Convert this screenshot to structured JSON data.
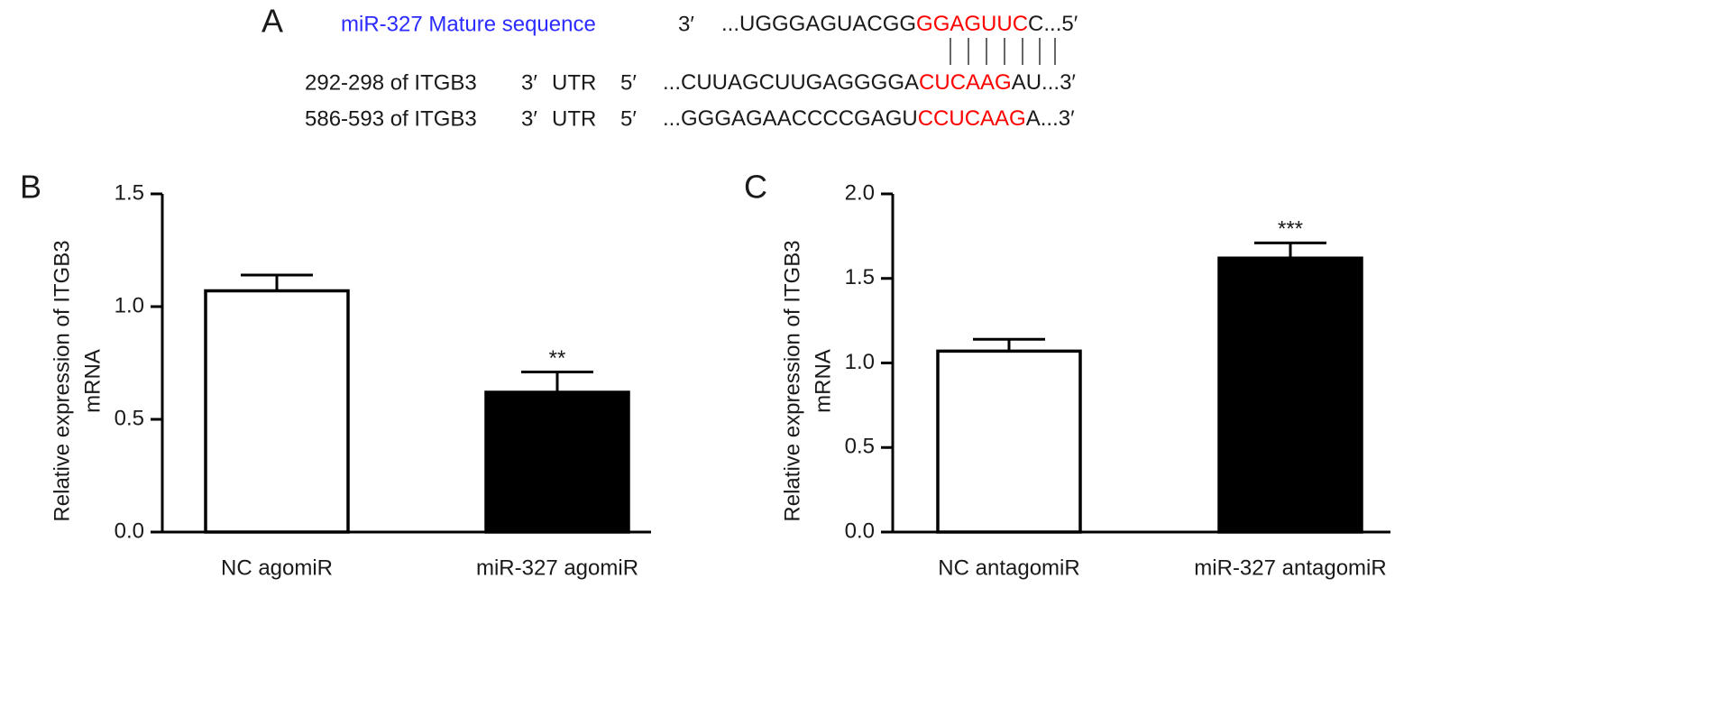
{
  "sequence_panel": {
    "label": "A",
    "mature": {
      "name": "miR-327 Mature sequence",
      "end": "3′",
      "segments": [
        "...UGGGAGUACGG",
        "GGAGUUC",
        "C...5′"
      ]
    },
    "targets": [
      {
        "site": "292-298 of ITGB3",
        "end3": "3′",
        "region": "UTR",
        "end5": "5′",
        "segments": [
          "...CUUAGCUUGAGGGGA",
          "CUCAAG",
          "AU...3′"
        ]
      },
      {
        "site": "586-593 of ITGB3",
        "end3": "3′",
        "region": "UTR",
        "end5": "5′",
        "segments": [
          "...GGGAGAACCCCGAGU",
          "CCUCAAG",
          "A...3′"
        ]
      }
    ],
    "match_color": "#ff0000",
    "name_color": "#2b2bff"
  },
  "chart_data": [
    {
      "type": "bar",
      "panel": "B",
      "ylabel": [
        "Relative expression of ITGB3",
        "mRNA"
      ],
      "categories": [
        "NC agomiR",
        "miR-327 agomiR"
      ],
      "values": [
        1.07,
        0.62
      ],
      "errors": [
        0.07,
        0.09
      ],
      "colors": [
        "#ffffff",
        "#000000"
      ],
      "value_annotations": [
        null,
        "**"
      ],
      "ylim": [
        0,
        1.5
      ],
      "yticks": [
        {
          "value": 0,
          "label": "0.0"
        },
        0.5,
        {
          "value": 1,
          "label": "1.0"
        },
        1.5
      ]
    },
    {
      "type": "bar",
      "panel": "C",
      "ylabel": [
        "Relative expression of ITGB3",
        "mRNA"
      ],
      "categories": [
        "NC antagomiR",
        "miR-327 antagomiR"
      ],
      "values": [
        1.07,
        1.62
      ],
      "errors": [
        0.07,
        0.09
      ],
      "colors": [
        "#ffffff",
        "#000000"
      ],
      "value_annotations": [
        null,
        "***"
      ],
      "ylim": [
        0,
        2
      ],
      "yticks": [
        {
          "value": 0,
          "label": "0.0"
        },
        0.5,
        {
          "value": 1,
          "label": "1.0"
        },
        1.5,
        {
          "value": 2,
          "label": "2.0"
        }
      ]
    }
  ]
}
